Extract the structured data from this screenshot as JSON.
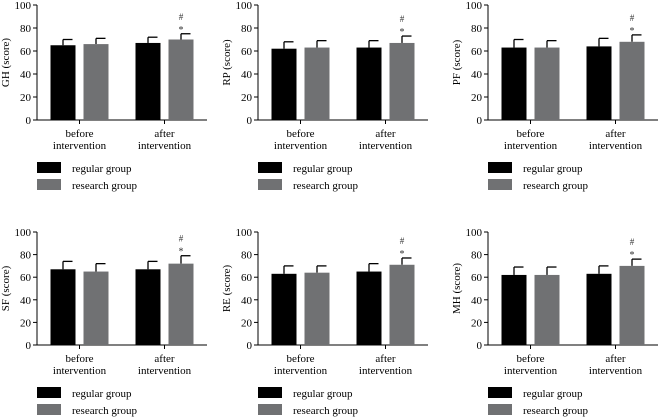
{
  "chart_data": [
    {
      "type": "bar",
      "ylabel": "GH (score)",
      "categories": [
        "before\nintervention",
        "after\nintervention"
      ],
      "ylim": [
        0,
        100
      ],
      "yticks": [
        0,
        20,
        40,
        60,
        80,
        100
      ],
      "series": [
        {
          "name": "regular group",
          "values": [
            65,
            67
          ],
          "errors": [
            5,
            5
          ]
        },
        {
          "name": "research group",
          "values": [
            66,
            70
          ],
          "errors": [
            5,
            5
          ]
        }
      ],
      "annotations": [
        {
          "category": 1,
          "series": 1,
          "text": "*"
        },
        {
          "category": 1,
          "series": 1,
          "text": "#"
        }
      ]
    },
    {
      "type": "bar",
      "ylabel": "RP (score)",
      "categories": [
        "before\nintervention",
        "after\nintervention"
      ],
      "ylim": [
        0,
        100
      ],
      "yticks": [
        0,
        20,
        40,
        60,
        80,
        100
      ],
      "series": [
        {
          "name": "regular group",
          "values": [
            62,
            63
          ],
          "errors": [
            6,
            6
          ]
        },
        {
          "name": "research group",
          "values": [
            63,
            67
          ],
          "errors": [
            6,
            6
          ]
        }
      ],
      "annotations": [
        {
          "category": 1,
          "series": 1,
          "text": "*"
        },
        {
          "category": 1,
          "series": 1,
          "text": "#"
        }
      ]
    },
    {
      "type": "bar",
      "ylabel": "PF (score)",
      "categories": [
        "before\nintervention",
        "after\nintervention"
      ],
      "ylim": [
        0,
        100
      ],
      "yticks": [
        0,
        20,
        40,
        60,
        80,
        100
      ],
      "series": [
        {
          "name": "regular group",
          "values": [
            63,
            64
          ],
          "errors": [
            7,
            7
          ]
        },
        {
          "name": "research group",
          "values": [
            63,
            68
          ],
          "errors": [
            6,
            6
          ]
        }
      ],
      "annotations": [
        {
          "category": 1,
          "series": 1,
          "text": "*"
        },
        {
          "category": 1,
          "series": 1,
          "text": "#"
        }
      ]
    },
    {
      "type": "bar",
      "ylabel": "SF (score)",
      "categories": [
        "before\nintervention",
        "after\nintervention"
      ],
      "ylim": [
        0,
        100
      ],
      "yticks": [
        0,
        20,
        40,
        60,
        80,
        100
      ],
      "series": [
        {
          "name": "regular group",
          "values": [
            67,
            67
          ],
          "errors": [
            7,
            7
          ]
        },
        {
          "name": "research group",
          "values": [
            65,
            72
          ],
          "errors": [
            7,
            7
          ]
        }
      ],
      "annotations": [
        {
          "category": 1,
          "series": 1,
          "text": "*"
        },
        {
          "category": 1,
          "series": 1,
          "text": "#"
        }
      ]
    },
    {
      "type": "bar",
      "ylabel": "RE (score)",
      "categories": [
        "before\nintervention",
        "after\nintervention"
      ],
      "ylim": [
        0,
        100
      ],
      "yticks": [
        0,
        20,
        40,
        60,
        80,
        100
      ],
      "series": [
        {
          "name": "regular group",
          "values": [
            63,
            65
          ],
          "errors": [
            7,
            7
          ]
        },
        {
          "name": "research group",
          "values": [
            64,
            71
          ],
          "errors": [
            6,
            6
          ]
        }
      ],
      "annotations": [
        {
          "category": 1,
          "series": 1,
          "text": "*"
        },
        {
          "category": 1,
          "series": 1,
          "text": "#"
        }
      ]
    },
    {
      "type": "bar",
      "ylabel": "MH (score)",
      "categories": [
        "before\nintervention",
        "after\nintervention"
      ],
      "ylim": [
        0,
        100
      ],
      "yticks": [
        0,
        20,
        40,
        60,
        80,
        100
      ],
      "series": [
        {
          "name": "regular group",
          "values": [
            62,
            63
          ],
          "errors": [
            7,
            7
          ]
        },
        {
          "name": "research group",
          "values": [
            62,
            70
          ],
          "errors": [
            7,
            6
          ]
        }
      ],
      "annotations": [
        {
          "category": 1,
          "series": 1,
          "text": "*"
        },
        {
          "category": 1,
          "series": 1,
          "text": "#"
        }
      ]
    }
  ],
  "colors": {
    "regular group": "#000000",
    "research group": "#707173"
  }
}
